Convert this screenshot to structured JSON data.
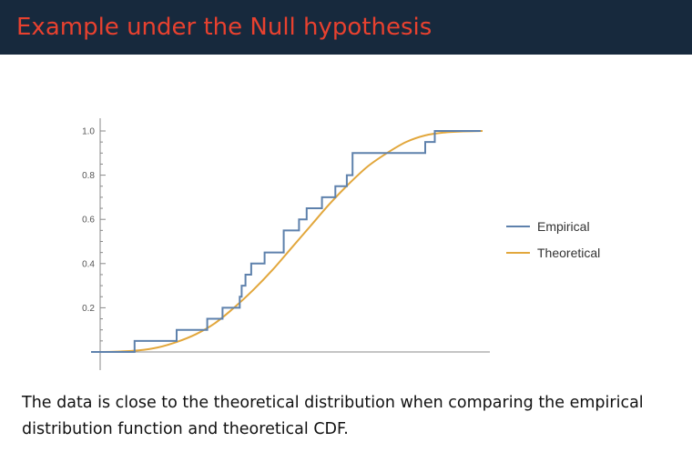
{
  "slide": {
    "title": "Example under the Null hypothesis",
    "caption": "The data is close to the theoretical distribution when comparing the empirical distribution function and theoretical CDF."
  },
  "colors": {
    "header_bg": "#17293d",
    "title": "#e8412f",
    "empirical": "#5e81ac",
    "theoretical": "#e2a73c",
    "axis": "#888888"
  },
  "chart_data": {
    "type": "line",
    "title": "",
    "xlabel": "",
    "ylabel": "",
    "ylim": [
      0,
      1
    ],
    "xlim": [
      0,
      1
    ],
    "grid": false,
    "yticks": [
      "0.2",
      "0.4",
      "0.6",
      "0.8",
      "1.0"
    ],
    "ytick_values": [
      0.2,
      0.4,
      0.6,
      0.8,
      1.0
    ],
    "legend_position": "right",
    "series": [
      {
        "name": "Empirical",
        "kind": "step",
        "color": "#5e81ac",
        "x": [
          0.09,
          0.2,
          0.28,
          0.32,
          0.365,
          0.37,
          0.38,
          0.395,
          0.43,
          0.48,
          0.52,
          0.54,
          0.58,
          0.615,
          0.645,
          0.66,
          0.85,
          0.875
        ],
        "y": [
          0.05,
          0.1,
          0.15,
          0.2,
          0.25,
          0.3,
          0.35,
          0.4,
          0.45,
          0.55,
          0.6,
          0.65,
          0.7,
          0.75,
          0.8,
          0.9,
          0.95,
          1.0
        ]
      },
      {
        "name": "Theoretical",
        "kind": "curve",
        "color": "#e2a73c",
        "x": [
          0.0,
          0.05,
          0.1,
          0.15,
          0.2,
          0.25,
          0.3,
          0.35,
          0.4,
          0.45,
          0.5,
          0.55,
          0.6,
          0.65,
          0.7,
          0.75,
          0.8,
          0.85,
          0.9,
          0.95,
          1.0
        ],
        "y": [
          0.0,
          0.002,
          0.007,
          0.02,
          0.045,
          0.08,
          0.13,
          0.2,
          0.28,
          0.37,
          0.47,
          0.57,
          0.67,
          0.76,
          0.84,
          0.9,
          0.95,
          0.98,
          0.993,
          0.998,
          1.0
        ]
      }
    ]
  }
}
